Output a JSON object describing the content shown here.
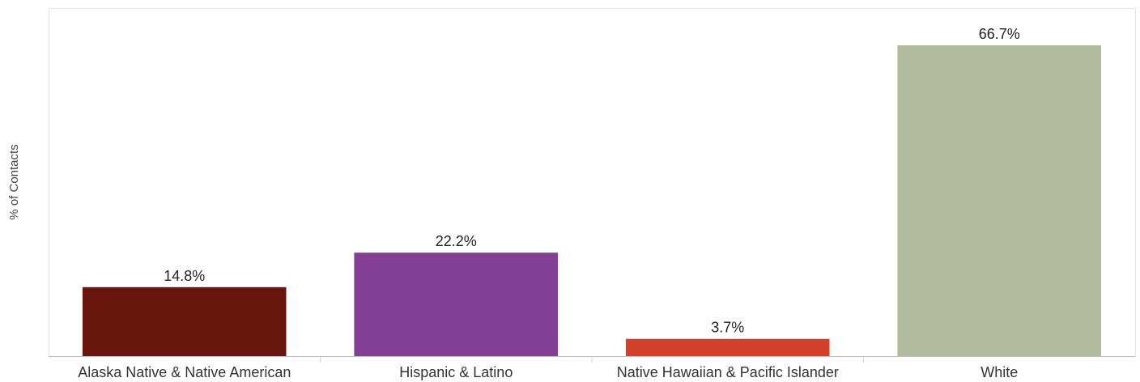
{
  "chart_data": {
    "type": "bar",
    "title": "",
    "xlabel": "",
    "ylabel": "% of Contacts",
    "ylim": [
      0,
      70
    ],
    "grid": false,
    "categories": [
      "Alaska Native & Native American",
      "Hispanic & Latino",
      "Native Hawaiian & Pacific Islander",
      "White"
    ],
    "values": [
      14.8,
      22.2,
      3.7,
      66.7
    ],
    "data_labels": [
      "14.8%",
      "22.2%",
      "3.7%",
      "66.7%"
    ],
    "colors": [
      "#68150d",
      "#833f93",
      "#d4412a",
      "#b3bb9e"
    ]
  }
}
